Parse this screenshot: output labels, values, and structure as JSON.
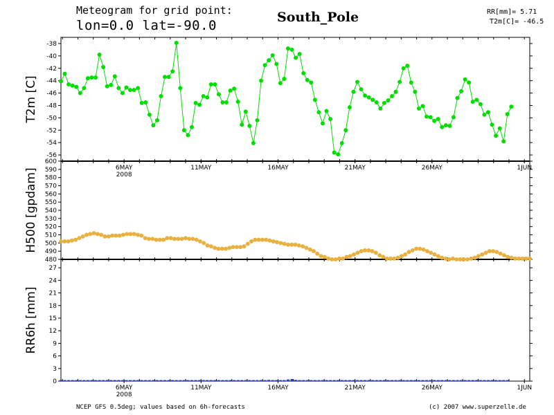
{
  "header": {
    "line1": "Meteogram for grid point:",
    "line2": "lon=0.0 lat=-90.0",
    "location": "South_Pole",
    "stat_rr": "RR[mm]= 5.71",
    "stat_t2m": "T2m[C]= -46.5"
  },
  "footer": {
    "source": "NCEP GFS 0.5deg; values based on 6h-forecasts",
    "copyright": "(c) 2007 www.superzelle.de"
  },
  "colors": {
    "t2m": "#00dd00",
    "h500": "#e8b040",
    "rr": "#2040d0",
    "axis": "#000000"
  },
  "chart_data": [
    {
      "type": "line",
      "ylabel": "T2m [C]",
      "ylim": [
        -57,
        -37
      ],
      "yticks": [
        -56,
        -54,
        -52,
        -50,
        -48,
        -46,
        -44,
        -42,
        -40,
        -38
      ],
      "xticks": [
        {
          "day": 6,
          "label": "6MAY",
          "sub": "2008"
        },
        {
          "day": 11,
          "label": "11MAY",
          "sub": ""
        },
        {
          "day": 16,
          "label": "16MAY",
          "sub": ""
        },
        {
          "day": 21,
          "label": "21MAY",
          "sub": ""
        },
        {
          "day": 26,
          "label": "26MAY",
          "sub": ""
        },
        {
          "day": 32,
          "label": "1JUN",
          "sub": ""
        }
      ],
      "x_start_day": 1.9,
      "x_step_days": 0.25,
      "series": [
        {
          "values": [
            -44.1,
            -42.9,
            -44.6,
            -44.8,
            -45.0,
            -46.0,
            -45.2,
            -43.6,
            -43.5,
            -43.5,
            -39.8,
            -41.8,
            -44.9,
            -44.7,
            -43.3,
            -45.2,
            -46.0,
            -45.1,
            -45.5,
            -45.5,
            -45.2,
            -47.6,
            -47.5,
            -49.5,
            -51.2,
            -50.4,
            -46.5,
            -43.4,
            -43.4,
            -42.5,
            -37.9,
            -45.2,
            -52.0,
            -52.8,
            -51.5,
            -47.6,
            -47.9,
            -46.5,
            -46.7,
            -44.6,
            -44.6,
            -46.2,
            -47.5,
            -47.5,
            -45.6,
            -45.3,
            -47.4,
            -51.1,
            -49.0,
            -51.3,
            -54.1,
            -50.4,
            -44.0,
            -41.5,
            -40.7,
            -39.9,
            -41.3,
            -44.4,
            -43.7,
            -38.8,
            -39.0,
            -40.3,
            -39.7,
            -42.8,
            -43.9,
            -44.3,
            -47.1,
            -49.1,
            -50.9,
            -48.9,
            -50.2,
            -55.6,
            -55.9,
            -54.1,
            -52.0,
            -48.3,
            -45.8,
            -44.2,
            -45.4,
            -46.4,
            -46.7,
            -47.1,
            -47.5,
            -48.5,
            -47.6,
            -47.2,
            -46.5,
            -45.8,
            -44.2,
            -42.0,
            -41.6,
            -44.3,
            -45.8,
            -48.5,
            -48.1,
            -49.8,
            -49.9,
            -50.5,
            -50.2,
            -51.5,
            -51.2,
            -51.3,
            -49.9,
            -46.8,
            -45.7,
            -43.8,
            -44.3,
            -47.4,
            -47.1,
            -47.8,
            -49.5,
            -49.1,
            -51.1,
            -52.9,
            -51.7,
            -53.8,
            -49.4,
            -48.2
          ]
        }
      ]
    },
    {
      "type": "line",
      "ylabel": "H500 [gpdam]",
      "ylim": [
        480,
        600
      ],
      "yticks": [
        480,
        490,
        500,
        510,
        520,
        530,
        540,
        550,
        560,
        570,
        580,
        590,
        600
      ],
      "x_start_day": 1.9,
      "x_step_days": 0.25,
      "series": [
        {
          "values": [
            502,
            502,
            502,
            503,
            504,
            506,
            508,
            510,
            511,
            512,
            511,
            510,
            508,
            508,
            509,
            509,
            509,
            510,
            511,
            511,
            511,
            510,
            509,
            506,
            505,
            505,
            504,
            504,
            504,
            506,
            506,
            505,
            505,
            505,
            506,
            505,
            505,
            504,
            502,
            500,
            497,
            496,
            494,
            493,
            493,
            493,
            494,
            495,
            495,
            495,
            496,
            499,
            502,
            504,
            504,
            504,
            504,
            503,
            502,
            501,
            500,
            499,
            498,
            498,
            498,
            497,
            496,
            494,
            492,
            490,
            487,
            484,
            483,
            481,
            480,
            480,
            481,
            481,
            483,
            484,
            486,
            488,
            490,
            491,
            491,
            490,
            488,
            485,
            483,
            481,
            481,
            481,
            482,
            484,
            486,
            489,
            491,
            493,
            493,
            492,
            490,
            488,
            486,
            484,
            482,
            481,
            480,
            481,
            480,
            479,
            479,
            480,
            481,
            482,
            484,
            486,
            488,
            490,
            490,
            489,
            487,
            485,
            483,
            482,
            481,
            481,
            481,
            481,
            481
          ]
        }
      ]
    },
    {
      "type": "bar",
      "ylabel": "RR6h [mm]",
      "ylim": [
        0,
        29
      ],
      "yticks": [
        0,
        3,
        6,
        9,
        12,
        15,
        18,
        21,
        24,
        27
      ],
      "x_start_day": 1.9,
      "x_step_days": 0.25,
      "series": [
        {
          "values": [
            0,
            0,
            0,
            0,
            0,
            0,
            0,
            0,
            0,
            0,
            0,
            0,
            0,
            0,
            0,
            0,
            0.1,
            0.1,
            0.1,
            0,
            0,
            0,
            0,
            0,
            0,
            0,
            0,
            0,
            0,
            0,
            0,
            0,
            0.1,
            0.1,
            0.1,
            0,
            0,
            0,
            0,
            0,
            0,
            0,
            0,
            0,
            0,
            0,
            0,
            0,
            0,
            0,
            0,
            0,
            0,
            0.2,
            0.3,
            0.1,
            0,
            0,
            0,
            0.4,
            0.5,
            0.3,
            0,
            0,
            0,
            0,
            0,
            0,
            0,
            0,
            0,
            0,
            0,
            0,
            0,
            0,
            0,
            0,
            0,
            0,
            0,
            0,
            0,
            0,
            0,
            0,
            0,
            0,
            0,
            0,
            0,
            0,
            0,
            0,
            0,
            0,
            0,
            0,
            0,
            0.1,
            0.1,
            0,
            0,
            0,
            0,
            0,
            0,
            0,
            0,
            0,
            0,
            0,
            0,
            0,
            0,
            0,
            0
          ]
        }
      ]
    }
  ]
}
